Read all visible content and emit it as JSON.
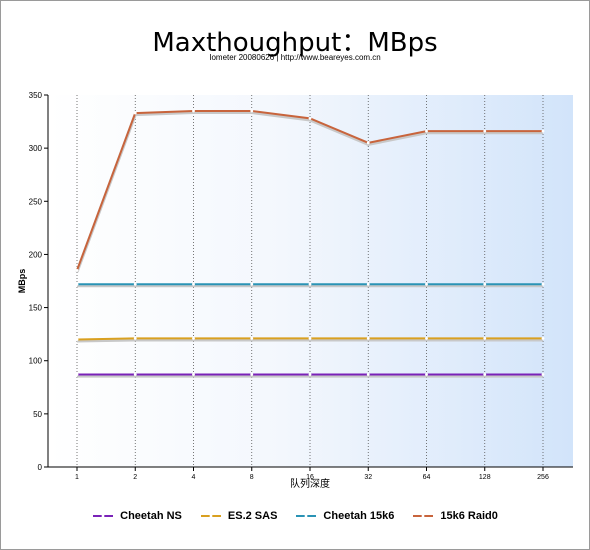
{
  "chart_data": {
    "type": "line",
    "title": "Maxthoughput：MBps",
    "subtitle": "Iometer 20080626 | http://www.beareyes.com.cn",
    "xlabel": "队列深度",
    "ylabel": "MBps",
    "categories": [
      "1",
      "2",
      "4",
      "8",
      "16",
      "32",
      "64",
      "128",
      "256"
    ],
    "ylim": [
      0,
      350
    ],
    "yticks": [
      0,
      50,
      100,
      150,
      200,
      250,
      300,
      350
    ],
    "grid": "vertical-dotted",
    "legend": "bottom",
    "series": [
      {
        "name": "Cheetah NS",
        "color": "#7a22b8",
        "values": [
          87,
          87,
          87,
          87,
          87,
          87,
          87,
          87,
          87
        ]
      },
      {
        "name": "ES.2 SAS",
        "color": "#d9a020",
        "values": [
          120,
          121,
          121,
          121,
          121,
          121,
          121,
          121,
          121
        ]
      },
      {
        "name": "Cheetah 15k6",
        "color": "#2a93b5",
        "values": [
          172,
          172,
          172,
          172,
          172,
          172,
          172,
          172,
          172
        ]
      },
      {
        "name": "15k6 Raid0",
        "color": "#c8643c",
        "values": [
          185,
          333,
          335,
          335,
          328,
          305,
          316,
          316,
          316
        ]
      }
    ]
  }
}
